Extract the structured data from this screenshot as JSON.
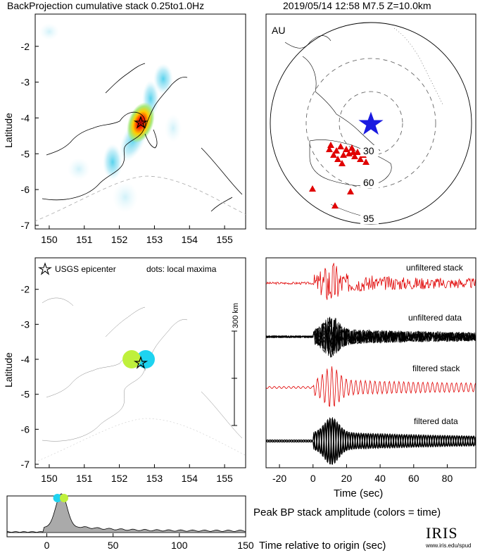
{
  "header": {
    "left_title": "BackProjection cumulative stack 0.25to1.0Hz",
    "right_title": "2019/05/14 12:58  M7.5  Z=10.0km"
  },
  "chart_data": [
    {
      "type": "heatmap",
      "name": "cumulative stack map",
      "ylabel": "Latitude",
      "xlim": [
        149.6,
        155.6
      ],
      "ylim": [
        -7.1,
        -1.1
      ],
      "xticks": [
        "150",
        "151",
        "152",
        "153",
        "154",
        "155"
      ],
      "yticks": [
        "-2",
        "-3",
        "-4",
        "-5",
        "-6",
        "-7"
      ],
      "peak": {
        "lon": 152.55,
        "lat": -4.1
      },
      "epicenter": {
        "lon": 152.55,
        "lat": -4.05
      }
    },
    {
      "type": "scatter",
      "name": "station map",
      "region_label": "AU",
      "ring_labels": [
        "30",
        "60",
        "95"
      ],
      "epicenter_marker": "blue-star",
      "stations_marker": "red-triangle"
    },
    {
      "type": "scatter",
      "name": "local maxima map",
      "ylabel": "Latitude",
      "legend": {
        "epicenter": "USGS epicenter",
        "dots": "dots: local maxima"
      },
      "scale_bar": "300 km",
      "xticks": [
        "150",
        "151",
        "152",
        "153",
        "154",
        "155"
      ],
      "yticks": [
        "-2",
        "-3",
        "-4",
        "-5",
        "-6",
        "-7"
      ],
      "points": [
        {
          "lon": 152.35,
          "lat": -4.0,
          "color": "#bff03c"
        },
        {
          "lon": 152.75,
          "lat": -4.0,
          "color": "#1ed3f0"
        }
      ]
    },
    {
      "type": "line",
      "name": "traces",
      "xlabel": "Time (sec)",
      "xlim": [
        -28,
        97
      ],
      "xticks": [
        "-20",
        "0",
        "20",
        "40",
        "60",
        "80"
      ],
      "x_values": [
        -20,
        0,
        20,
        40,
        60,
        80
      ],
      "trace_labels": [
        "unfiltered stack",
        "unfiltered data",
        "filtered stack",
        "filtered data"
      ]
    },
    {
      "type": "area",
      "name": "peak amplitude",
      "title": "Peak BP stack amplitude (colors = time)",
      "xlabel": "Time relative to origin (sec)",
      "xlim": [
        -30,
        150
      ],
      "xticks": [
        "0",
        "50",
        "100",
        "150"
      ],
      "x_values": [
        0,
        50,
        100,
        150
      ],
      "dots": [
        {
          "t": 8,
          "color": "#1ed3f0"
        },
        {
          "t": 13,
          "color": "#bff03c"
        }
      ]
    }
  ],
  "logo": {
    "text": "IRIS",
    "url": "www.iris.edu/spud"
  }
}
